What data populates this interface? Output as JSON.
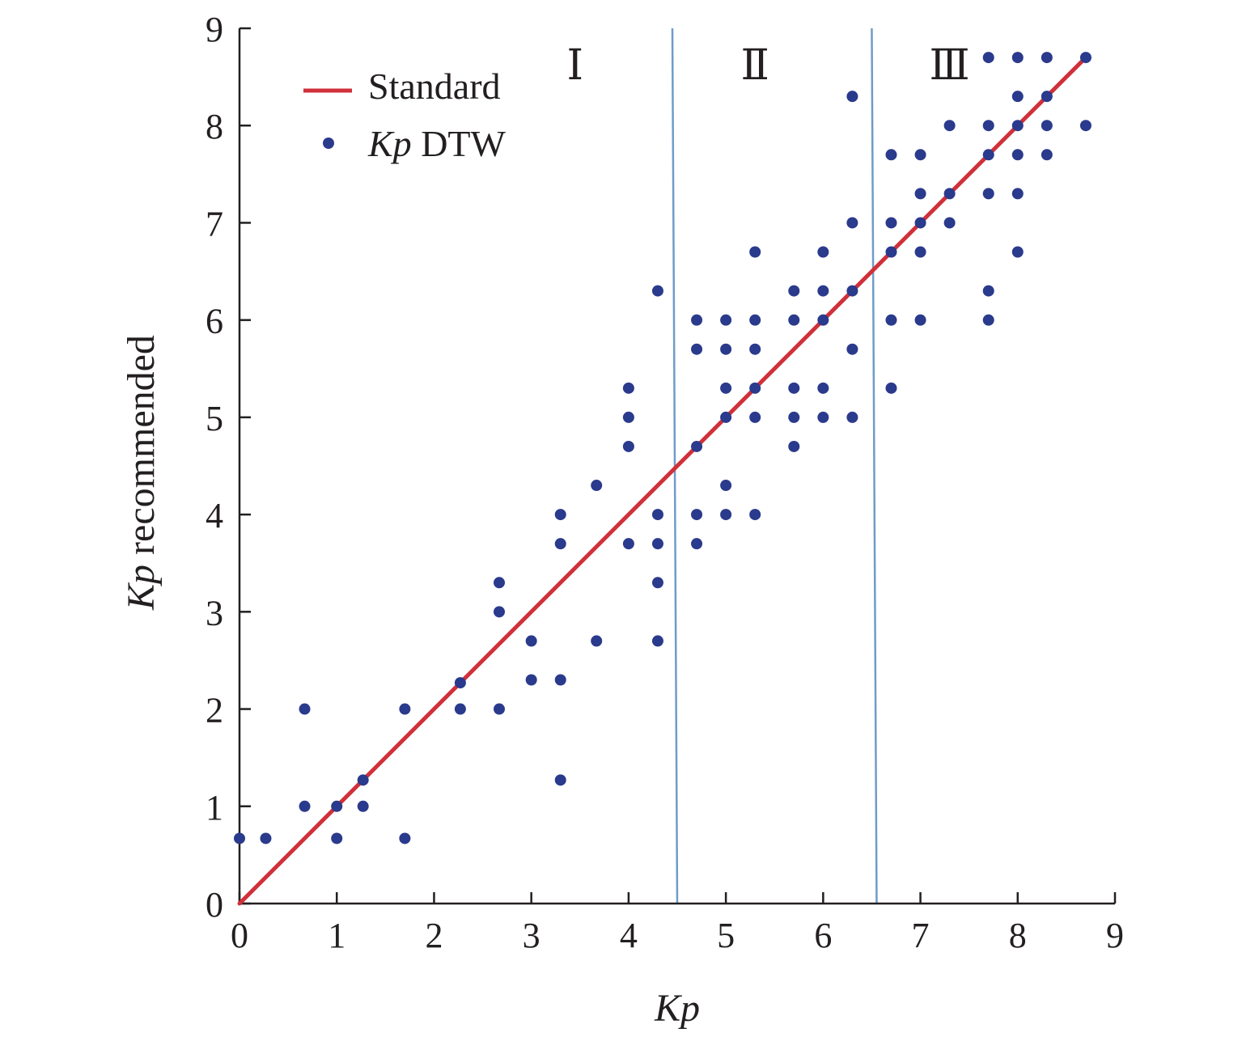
{
  "chart_data": {
    "type": "scatter",
    "title": "",
    "xlabel": {
      "italic": "Kp",
      "rest": ""
    },
    "ylabel": {
      "italic": "Kp",
      "rest": " recommended"
    },
    "xlim": [
      0,
      9
    ],
    "ylim": [
      0,
      9
    ],
    "xticks": [
      "0",
      "1",
      "2",
      "3",
      "4",
      "5",
      "6",
      "7",
      "8",
      "9"
    ],
    "yticks": [
      "0",
      "1",
      "2",
      "3",
      "4",
      "5",
      "6",
      "7",
      "8",
      "9"
    ],
    "grid": false,
    "legend_position": "top-left",
    "colors": {
      "line": "#d0303a",
      "points": "#2a3a8c",
      "dividers": "#6f9cc8",
      "axis": "#231f20"
    },
    "regions": [
      {
        "label": "Ⅰ",
        "x_center": 3.45
      },
      {
        "label": "Ⅱ",
        "x_center": 5.3
      },
      {
        "label": "Ⅲ",
        "x_center": 7.3
      }
    ],
    "dividers": [
      {
        "x_top": 4.45,
        "x_bottom": 4.5
      },
      {
        "x_top": 6.5,
        "x_bottom": 6.55
      }
    ],
    "series": [
      {
        "name": "Standard",
        "kind": "line",
        "points": [
          [
            0,
            0
          ],
          [
            8.7,
            8.7
          ]
        ]
      },
      {
        "name": {
          "italic": "Kp",
          "rest": " DTW"
        },
        "kind": "scatter",
        "points": [
          [
            0,
            0.67
          ],
          [
            0.27,
            0.67
          ],
          [
            0.67,
            1
          ],
          [
            0.67,
            2
          ],
          [
            1,
            1
          ],
          [
            1,
            0.67
          ],
          [
            1.27,
            1.27
          ],
          [
            1.27,
            1
          ],
          [
            1.7,
            2
          ],
          [
            1.7,
            0.67
          ],
          [
            2.27,
            2.27
          ],
          [
            2.27,
            2
          ],
          [
            2.67,
            3.3
          ],
          [
            2.67,
            3
          ],
          [
            2.67,
            2
          ],
          [
            3,
            2.7
          ],
          [
            3,
            2.3
          ],
          [
            3.3,
            4
          ],
          [
            3.3,
            3.7
          ],
          [
            3.3,
            2.3
          ],
          [
            3.3,
            1.27
          ],
          [
            3.67,
            4.3
          ],
          [
            3.67,
            2.7
          ],
          [
            4,
            5.3
          ],
          [
            4,
            5
          ],
          [
            4,
            4.7
          ],
          [
            4,
            3.7
          ],
          [
            4.3,
            6.3
          ],
          [
            4.3,
            4
          ],
          [
            4.3,
            3.7
          ],
          [
            4.3,
            3.3
          ],
          [
            4.3,
            2.7
          ],
          [
            4.7,
            6
          ],
          [
            4.7,
            5.7
          ],
          [
            4.7,
            4.7
          ],
          [
            4.7,
            4
          ],
          [
            4.7,
            3.7
          ],
          [
            5,
            6
          ],
          [
            5,
            5.7
          ],
          [
            5,
            5.3
          ],
          [
            5,
            5
          ],
          [
            5,
            4.3
          ],
          [
            5,
            4
          ],
          [
            5.3,
            6.7
          ],
          [
            5.3,
            6
          ],
          [
            5.3,
            5.7
          ],
          [
            5.3,
            5.3
          ],
          [
            5.3,
            5
          ],
          [
            5.3,
            4
          ],
          [
            5.7,
            6.3
          ],
          [
            5.7,
            6
          ],
          [
            5.7,
            5.3
          ],
          [
            5.7,
            5
          ],
          [
            5.7,
            4.7
          ],
          [
            6,
            6.7
          ],
          [
            6,
            6.3
          ],
          [
            6,
            6
          ],
          [
            6,
            5.3
          ],
          [
            6,
            5
          ],
          [
            6.3,
            8.3
          ],
          [
            6.3,
            7
          ],
          [
            6.3,
            6.3
          ],
          [
            6.3,
            5.7
          ],
          [
            6.3,
            5
          ],
          [
            6.7,
            7.7
          ],
          [
            6.7,
            7
          ],
          [
            6.7,
            6.7
          ],
          [
            6.7,
            6
          ],
          [
            6.7,
            5.3
          ],
          [
            7,
            7.7
          ],
          [
            7,
            7.3
          ],
          [
            7,
            7
          ],
          [
            7,
            6.7
          ],
          [
            7,
            6
          ],
          [
            7.3,
            8
          ],
          [
            7.3,
            7.3
          ],
          [
            7.3,
            7
          ],
          [
            7.7,
            8.7
          ],
          [
            7.7,
            8
          ],
          [
            7.7,
            7.7
          ],
          [
            7.7,
            7.3
          ],
          [
            7.7,
            6.3
          ],
          [
            7.7,
            6
          ],
          [
            8,
            8.7
          ],
          [
            8,
            8.3
          ],
          [
            8,
            8
          ],
          [
            8,
            7.7
          ],
          [
            8,
            7.3
          ],
          [
            8,
            6.7
          ],
          [
            8.3,
            8.7
          ],
          [
            8.3,
            8.3
          ],
          [
            8.3,
            8
          ],
          [
            8.3,
            7.7
          ],
          [
            8.7,
            8.7
          ],
          [
            8.7,
            8
          ]
        ]
      }
    ]
  }
}
